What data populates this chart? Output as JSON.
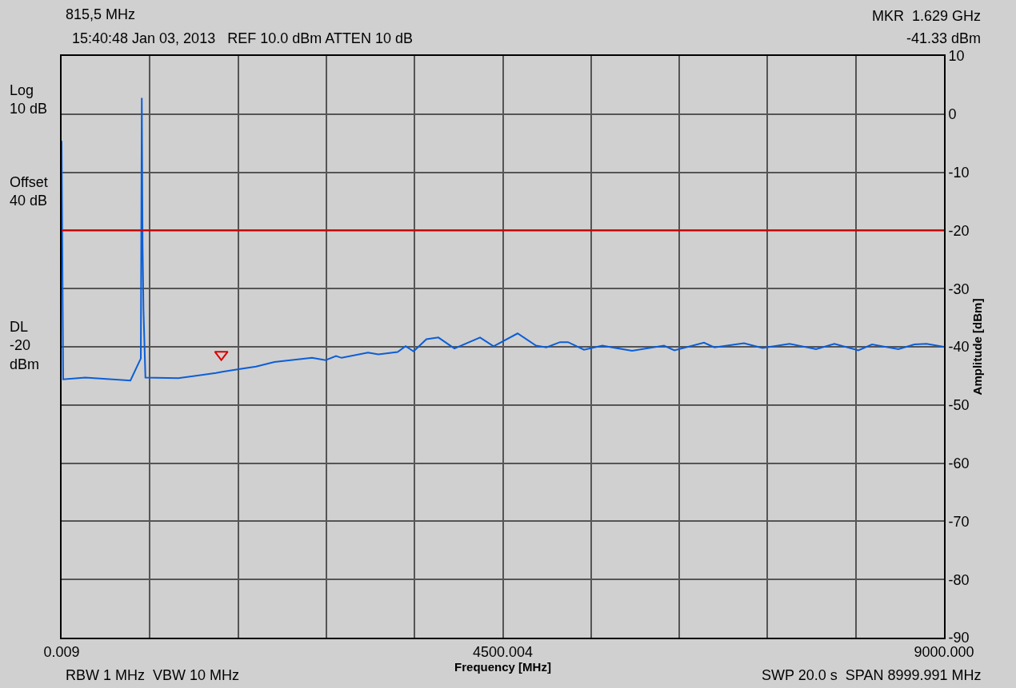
{
  "chart_data": {
    "type": "line",
    "xlabel": "Frequency [MHz]",
    "ylabel": "Amplitude [dBm]",
    "annotations": [
      "815,5 MHz",
      "15:40:48 Jan 03, 2013   REF 10.0 dBm ATTEN 10 dB",
      "MKR  1.629 GHz",
      "-41.33 dBm",
      "Log\n10 dB",
      "Offset\n40 dB",
      "DL\n-20\ndBm",
      "RBW 1 MHz  VBW 10 MHz",
      "SWP 20.0 s  SPAN 8999.991 MHz"
    ],
    "series": [
      {
        "color": "#0b5ed7",
        "x": [
          0.009,
          16,
          242,
          702,
          808,
          818,
          826,
          835,
          855,
          1191,
          1575,
          1640,
          1820,
          1983,
          2171,
          2554,
          2693,
          2799,
          2856,
          3125,
          3231,
          3427,
          3509,
          3590,
          3721,
          3843,
          4007,
          4268,
          4406,
          4651,
          4839,
          4945,
          5084,
          5165,
          5328,
          5516,
          5818,
          6144,
          6250,
          6552,
          6658,
          6960,
          7148,
          7425,
          7695,
          7882,
          8127,
          8266,
          8535,
          8698,
          8821,
          9000
        ],
        "values": [
          -4.6,
          -45.6,
          -45.3,
          -45.8,
          -42.0,
          2.8,
          -22.5,
          -33.5,
          -45.3,
          -45.4,
          -44.5,
          -44.3,
          -43.8,
          -43.4,
          -42.6,
          -41.9,
          -42.3,
          -41.6,
          -41.9,
          -41.0,
          -41.3,
          -40.9,
          -39.9,
          -40.8,
          -38.7,
          -38.4,
          -40.3,
          -38.4,
          -39.9,
          -37.7,
          -39.8,
          -40.1,
          -39.2,
          -39.2,
          -40.5,
          -39.8,
          -40.7,
          -39.8,
          -40.6,
          -39.3,
          -40.1,
          -39.4,
          -40.2,
          -39.5,
          -40.4,
          -39.5,
          -40.6,
          -39.6,
          -40.4,
          -39.6,
          -39.5,
          -40.0
        ]
      },
      {
        "type": "scatter",
        "color": "#dd0000",
        "marker": "triangle",
        "x": [
          1629
        ],
        "values": [
          -41.33
        ]
      }
    ],
    "xlim": [
      0.009,
      9000
    ],
    "xticks": [
      0.009,
      {
        "value": 900,
        "label": null
      },
      {
        "value": 1800,
        "label": null
      },
      {
        "value": 2700,
        "label": null
      },
      {
        "value": 3600,
        "label": null
      },
      4500.004,
      {
        "value": 5400,
        "label": null
      },
      {
        "value": 6300,
        "label": null
      },
      {
        "value": 7200,
        "label": null
      },
      {
        "value": 8100,
        "label": null
      },
      {
        "value": 9000,
        "label": "9000.000"
      }
    ],
    "ylim": [
      -90,
      10
    ],
    "yticks": [
      -90,
      -80,
      -70,
      -60,
      -50,
      -40,
      -30,
      -20,
      -10,
      0,
      10
    ],
    "ref_lines": [
      {
        "axis": "y",
        "value": -20,
        "label": null,
        "color": "#cc0000"
      }
    ],
    "grid": true
  }
}
